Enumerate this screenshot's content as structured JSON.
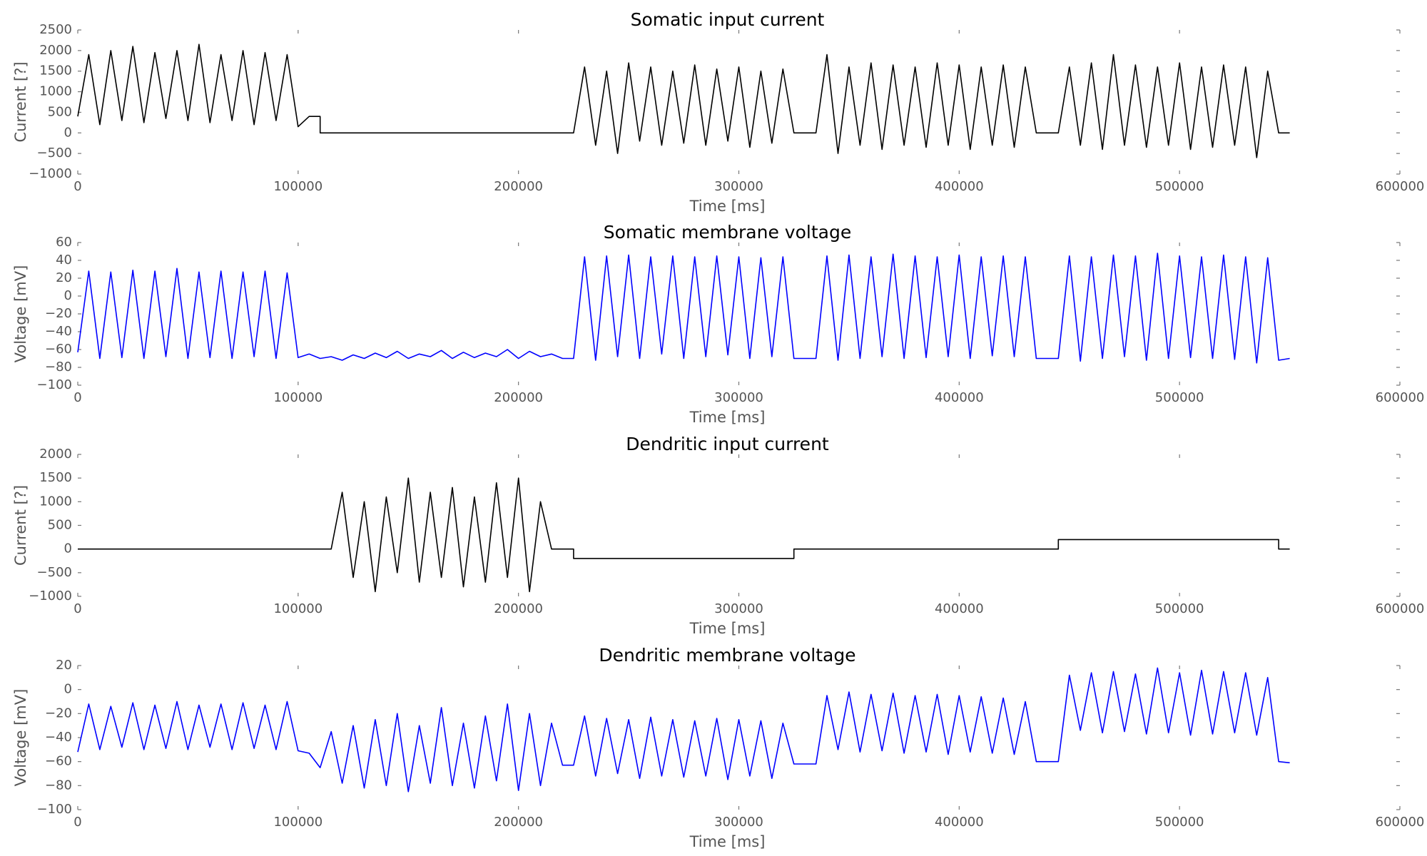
{
  "chart_data": [
    {
      "type": "line",
      "title": "Somatic input current",
      "xlabel": "Time [ms]",
      "ylabel": "Current [?]",
      "xlim": [
        0,
        600000
      ],
      "xticks": [
        0,
        100000,
        200000,
        300000,
        400000,
        500000,
        600000
      ],
      "ylim": [
        -1000,
        2500
      ],
      "yticks": [
        {
          "value": -1000,
          "label": "−1000"
        },
        {
          "value": -500,
          "label": "−500"
        },
        0,
        500,
        1000,
        1500,
        2000,
        2500
      ],
      "color": "#000000",
      "x": [
        0,
        5000,
        10000,
        15000,
        20000,
        25000,
        30000,
        35000,
        40000,
        45000,
        50000,
        55000,
        60000,
        65000,
        70000,
        75000,
        80000,
        85000,
        90000,
        95000,
        100000,
        105000,
        110000,
        110000,
        225000,
        230000,
        235000,
        240000,
        245000,
        250000,
        255000,
        260000,
        265000,
        270000,
        275000,
        280000,
        285000,
        290000,
        295000,
        300000,
        305000,
        310000,
        315000,
        320000,
        325000,
        335000,
        340000,
        345000,
        350000,
        355000,
        360000,
        365000,
        370000,
        375000,
        380000,
        385000,
        390000,
        395000,
        400000,
        405000,
        410000,
        415000,
        420000,
        425000,
        430000,
        435000,
        445000,
        450000,
        455000,
        460000,
        465000,
        470000,
        475000,
        480000,
        485000,
        490000,
        495000,
        500000,
        505000,
        510000,
        515000,
        520000,
        525000,
        530000,
        535000,
        540000,
        545000,
        550000
      ],
      "values": [
        400,
        1900,
        200,
        2000,
        300,
        2100,
        250,
        1950,
        350,
        2000,
        300,
        2150,
        250,
        1900,
        300,
        2000,
        200,
        1950,
        300,
        1900,
        150,
        400,
        400,
        0,
        0,
        1600,
        -300,
        1500,
        -500,
        1700,
        -200,
        1600,
        -300,
        1500,
        -250,
        1650,
        -300,
        1550,
        -200,
        1600,
        -350,
        1500,
        -250,
        1550,
        0,
        0,
        1900,
        -500,
        1600,
        -300,
        1700,
        -400,
        1650,
        -300,
        1600,
        -350,
        1700,
        -300,
        1650,
        -400,
        1600,
        -300,
        1650,
        -350,
        1600,
        0,
        0,
        1600,
        -300,
        1700,
        -400,
        1900,
        -300,
        1650,
        -350,
        1600,
        -300,
        1700,
        -400,
        1600,
        -350,
        1650,
        -300,
        1600,
        -600,
        1500,
        0,
        0
      ]
    },
    {
      "type": "line",
      "title": "Somatic membrane voltage",
      "xlabel": "Time [ms]",
      "ylabel": "Voltage [mV]",
      "xlim": [
        0,
        600000
      ],
      "xticks": [
        0,
        100000,
        200000,
        300000,
        400000,
        500000,
        600000
      ],
      "ylim": [
        -100,
        60
      ],
      "yticks": [
        {
          "value": -100,
          "label": "−100"
        },
        {
          "value": -80,
          "label": "−80"
        },
        {
          "value": -60,
          "label": "−60"
        },
        {
          "value": -40,
          "label": "−40"
        },
        {
          "value": -20,
          "label": "−20"
        },
        0,
        20,
        40,
        60
      ],
      "color": "#0000ff",
      "x": [
        0,
        5000,
        10000,
        15000,
        20000,
        25000,
        30000,
        35000,
        40000,
        45000,
        50000,
        55000,
        60000,
        65000,
        70000,
        75000,
        80000,
        85000,
        90000,
        95000,
        100000,
        105000,
        110000,
        115000,
        120000,
        125000,
        130000,
        135000,
        140000,
        145000,
        150000,
        155000,
        160000,
        165000,
        170000,
        175000,
        180000,
        185000,
        190000,
        195000,
        200000,
        205000,
        210000,
        215000,
        220000,
        225000,
        230000,
        235000,
        240000,
        245000,
        250000,
        255000,
        260000,
        265000,
        270000,
        275000,
        280000,
        285000,
        290000,
        295000,
        300000,
        305000,
        310000,
        315000,
        320000,
        325000,
        335000,
        340000,
        345000,
        350000,
        355000,
        360000,
        365000,
        370000,
        375000,
        380000,
        385000,
        390000,
        395000,
        400000,
        405000,
        410000,
        415000,
        420000,
        425000,
        430000,
        435000,
        445000,
        450000,
        455000,
        460000,
        465000,
        470000,
        475000,
        480000,
        485000,
        490000,
        495000,
        500000,
        505000,
        510000,
        515000,
        520000,
        525000,
        530000,
        535000,
        540000,
        545000,
        550000
      ],
      "values": [
        -63,
        28,
        -70,
        27,
        -69,
        29,
        -70,
        28,
        -68,
        31,
        -70,
        27,
        -69,
        28,
        -70,
        27,
        -68,
        28,
        -70,
        26,
        -69,
        -65,
        -70,
        -68,
        -72,
        -66,
        -70,
        -64,
        -69,
        -62,
        -70,
        -65,
        -68,
        -61,
        -70,
        -63,
        -69,
        -64,
        -68,
        -60,
        -70,
        -62,
        -68,
        -65,
        -70,
        -70,
        44,
        -72,
        45,
        -68,
        46,
        -70,
        44,
        -65,
        45,
        -70,
        44,
        -68,
        45,
        -66,
        44,
        -70,
        43,
        -68,
        44,
        -70,
        -70,
        45,
        -72,
        46,
        -70,
        44,
        -68,
        47,
        -70,
        45,
        -69,
        44,
        -68,
        46,
        -70,
        44,
        -67,
        45,
        -68,
        44,
        -70,
        -70,
        45,
        -73,
        44,
        -70,
        46,
        -68,
        45,
        -72,
        48,
        -70,
        45,
        -69,
        44,
        -70,
        46,
        -71,
        44,
        -75,
        43,
        -72,
        -70
      ]
    },
    {
      "type": "line",
      "title": "Dendritic input current",
      "xlabel": "Time [ms]",
      "ylabel": "Current [?]",
      "xlim": [
        0,
        600000
      ],
      "xticks": [
        0,
        100000,
        200000,
        300000,
        400000,
        500000,
        600000
      ],
      "ylim": [
        -1000,
        2000
      ],
      "yticks": [
        {
          "value": -1000,
          "label": "−1000"
        },
        {
          "value": -500,
          "label": "−500"
        },
        0,
        500,
        1000,
        1500,
        2000
      ],
      "color": "#000000",
      "x": [
        0,
        115000,
        120000,
        125000,
        130000,
        135000,
        140000,
        145000,
        150000,
        155000,
        160000,
        165000,
        170000,
        175000,
        180000,
        185000,
        190000,
        195000,
        200000,
        205000,
        210000,
        215000,
        225000,
        225000,
        325000,
        325000,
        445000,
        445000,
        545000,
        545000,
        550000
      ],
      "values": [
        0,
        0,
        1200,
        -600,
        1000,
        -900,
        1100,
        -500,
        1500,
        -700,
        1200,
        -600,
        1300,
        -800,
        1100,
        -700,
        1400,
        -600,
        1500,
        -900,
        1000,
        0,
        0,
        -200,
        -200,
        0,
        0,
        200,
        200,
        0,
        0
      ]
    },
    {
      "type": "line",
      "title": "Dendritic membrane voltage",
      "xlabel": "Time [ms]",
      "ylabel": "Voltage [mV]",
      "xlim": [
        0,
        600000
      ],
      "xticks": [
        0,
        100000,
        200000,
        300000,
        400000,
        500000,
        600000
      ],
      "ylim": [
        -100,
        20
      ],
      "yticks": [
        {
          "value": -100,
          "label": "−100"
        },
        {
          "value": -80,
          "label": "−80"
        },
        {
          "value": -60,
          "label": "−60"
        },
        {
          "value": -40,
          "label": "−40"
        },
        {
          "value": -20,
          "label": "−20"
        },
        0,
        20
      ],
      "color": "#0000ff",
      "x": [
        0,
        5000,
        10000,
        15000,
        20000,
        25000,
        30000,
        35000,
        40000,
        45000,
        50000,
        55000,
        60000,
        65000,
        70000,
        75000,
        80000,
        85000,
        90000,
        95000,
        100000,
        105000,
        110000,
        115000,
        120000,
        125000,
        130000,
        135000,
        140000,
        145000,
        150000,
        155000,
        160000,
        165000,
        170000,
        175000,
        180000,
        185000,
        190000,
        195000,
        200000,
        205000,
        210000,
        215000,
        220000,
        225000,
        230000,
        235000,
        240000,
        245000,
        250000,
        255000,
        260000,
        265000,
        270000,
        275000,
        280000,
        285000,
        290000,
        295000,
        300000,
        305000,
        310000,
        315000,
        320000,
        325000,
        335000,
        340000,
        345000,
        350000,
        355000,
        360000,
        365000,
        370000,
        375000,
        380000,
        385000,
        390000,
        395000,
        400000,
        405000,
        410000,
        415000,
        420000,
        425000,
        430000,
        435000,
        445000,
        450000,
        455000,
        460000,
        465000,
        470000,
        475000,
        480000,
        485000,
        490000,
        495000,
        500000,
        505000,
        510000,
        515000,
        520000,
        525000,
        530000,
        535000,
        540000,
        545000,
        550000
      ],
      "values": [
        -52,
        -12,
        -50,
        -14,
        -48,
        -11,
        -50,
        -13,
        -49,
        -10,
        -50,
        -13,
        -48,
        -12,
        -50,
        -11,
        -49,
        -13,
        -50,
        -10,
        -51,
        -53,
        -65,
        -35,
        -78,
        -30,
        -82,
        -25,
        -80,
        -20,
        -85,
        -30,
        -78,
        -15,
        -80,
        -28,
        -82,
        -22,
        -76,
        -12,
        -84,
        -20,
        -80,
        -28,
        -63,
        -63,
        -22,
        -72,
        -24,
        -70,
        -25,
        -74,
        -23,
        -72,
        -25,
        -73,
        -26,
        -72,
        -24,
        -75,
        -25,
        -72,
        -26,
        -74,
        -28,
        -62,
        -62,
        -5,
        -50,
        -2,
        -52,
        -4,
        -51,
        -3,
        -53,
        -5,
        -52,
        -4,
        -54,
        -5,
        -52,
        -6,
        -53,
        -7,
        -54,
        -10,
        -60,
        -60,
        12,
        -34,
        14,
        -36,
        15,
        -35,
        13,
        -37,
        18,
        -36,
        14,
        -38,
        16,
        -37,
        15,
        -36,
        14,
        -38,
        10,
        -60,
        -61
      ]
    }
  ]
}
